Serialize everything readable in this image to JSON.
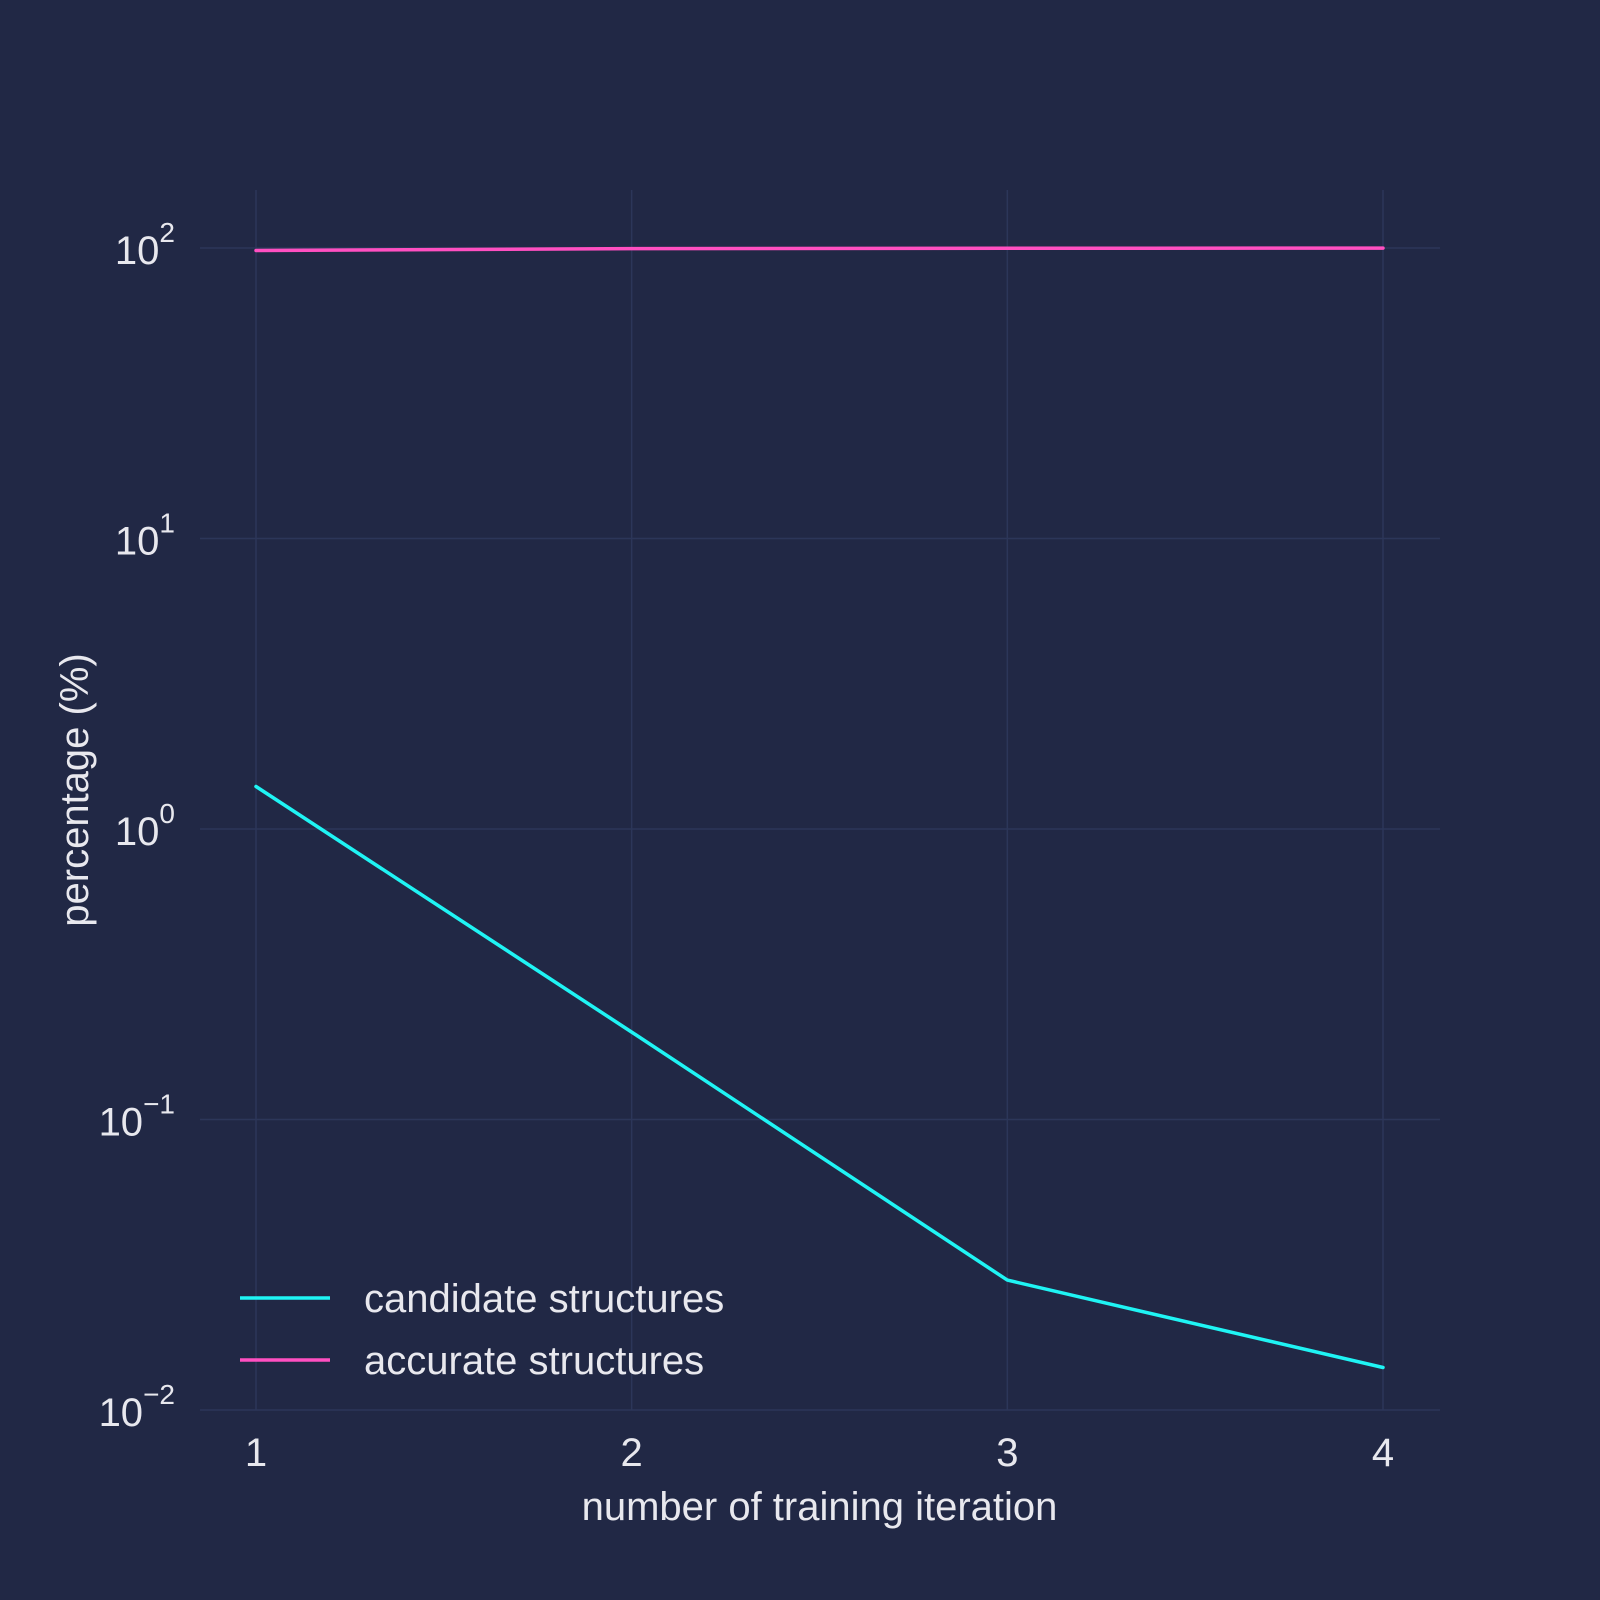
{
  "chart_data": {
    "type": "line",
    "title": "",
    "xlabel": "number of training iteration",
    "ylabel": "percentage (%)",
    "x": [
      1,
      2,
      3,
      4
    ],
    "x_ticks": [
      "1",
      "2",
      "3",
      "4"
    ],
    "y_scale": "log",
    "ylim": [
      0.01,
      180
    ],
    "y_ticks": [
      {
        "value": 100,
        "base": "10",
        "exp": "2"
      },
      {
        "value": 10,
        "base": "10",
        "exp": "1"
      },
      {
        "value": 1,
        "base": "10",
        "exp": "0"
      },
      {
        "value": 0.1,
        "base": "10",
        "exp": "−1"
      },
      {
        "value": 0.01,
        "base": "10",
        "exp": "−2"
      }
    ],
    "grid": true,
    "legend_position": "bottom-left",
    "series": [
      {
        "name": "candidate structures",
        "color": "#1ff4f4",
        "values": [
          1.4,
          0.2,
          0.028,
          0.014
        ]
      },
      {
        "name": "accurate structures",
        "color": "#ff4fc1",
        "values": [
          98,
          99.5,
          99.8,
          99.9
        ]
      }
    ]
  }
}
